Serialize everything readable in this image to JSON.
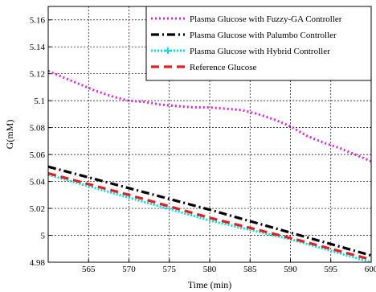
{
  "chart_data": {
    "type": "line",
    "title": "",
    "xlabel": "Time (min)",
    "ylabel": "G(mM)",
    "xlim": [
      560,
      600
    ],
    "ylim": [
      4.98,
      5.17
    ],
    "x_ticks": [
      565,
      570,
      575,
      580,
      585,
      590,
      595,
      600
    ],
    "y_ticks": [
      4.98,
      5,
      5.02,
      5.04,
      5.06,
      5.08,
      5.1,
      5.12,
      5.14,
      5.16
    ],
    "y_tick_labels": [
      "4.98",
      "5",
      "5.02",
      "5.04",
      "5.06",
      "5.08",
      "5.1",
      "5.12",
      "5.14",
      "5.16"
    ],
    "grid": true,
    "legend_position": "top-right",
    "series": [
      {
        "name": "Plasma Glucose with Fuzzy-GA Controller",
        "color": "#e020e0",
        "style": "dotted",
        "x": [
          560,
          562,
          564,
          566,
          568,
          570,
          572,
          574,
          576,
          578,
          580,
          582,
          584,
          586,
          588,
          590,
          592,
          594,
          596,
          598,
          600
        ],
        "y": [
          5.122,
          5.117,
          5.112,
          5.107,
          5.103,
          5.1,
          5.099,
          5.097,
          5.096,
          5.095,
          5.095,
          5.094,
          5.093,
          5.09,
          5.086,
          5.081,
          5.074,
          5.069,
          5.065,
          5.06,
          5.055
        ]
      },
      {
        "name": "Plasma Glucose with Palumbo Controller",
        "color": "#000000",
        "style": "dashdot",
        "x": [
          560,
          570,
          580,
          590,
          600
        ],
        "y": [
          5.051,
          5.035,
          5.019,
          5.002,
          4.985
        ]
      },
      {
        "name": "Plasma Glucose with Hybrid Controller",
        "color": "#00e0e0",
        "style": "dotted-marker",
        "x": [
          560,
          570,
          580,
          590,
          600
        ],
        "y": [
          5.045,
          5.028,
          5.011,
          4.997,
          4.98
        ]
      },
      {
        "name": "Reference Glucose",
        "color": "#e81c1c",
        "style": "dashed",
        "x": [
          560,
          570,
          580,
          590,
          600
        ],
        "y": [
          5.046,
          5.03,
          5.013,
          4.998,
          4.982
        ]
      }
    ]
  }
}
